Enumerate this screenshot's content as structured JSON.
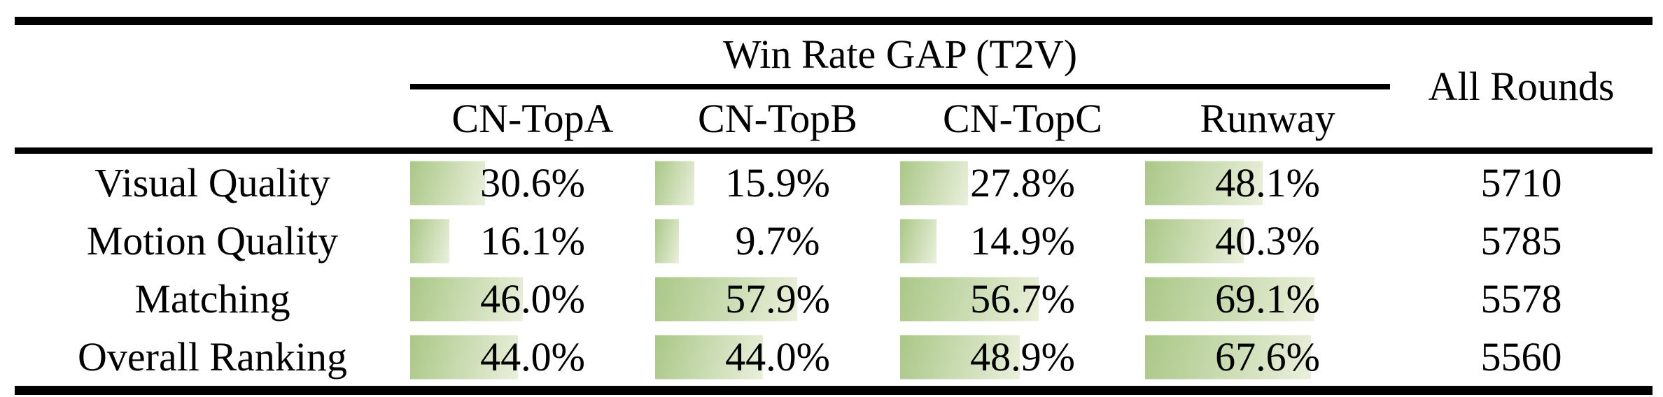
{
  "table": {
    "group_header": "Win Rate GAP (T2V)",
    "all_rounds_header": "All Rounds",
    "columns": [
      "CN-TopA",
      "CN-TopB",
      "CN-TopC",
      "Runway"
    ],
    "rows": [
      {
        "label": "Visual Quality",
        "values": [
          30.6,
          15.9,
          27.8,
          48.1
        ],
        "all_rounds": "5710"
      },
      {
        "label": "Motion Quality",
        "values": [
          16.1,
          9.7,
          14.9,
          40.3
        ],
        "all_rounds": "5785"
      },
      {
        "label": "Matching",
        "values": [
          46.0,
          57.9,
          56.7,
          69.1
        ],
        "all_rounds": "5578"
      },
      {
        "label": "Overall Ranking",
        "values": [
          44.0,
          44.0,
          48.9,
          67.6
        ],
        "all_rounds": "5560"
      }
    ],
    "colors": {
      "bar_gradient_start": "#aac787",
      "bar_gradient_end": "#eaf0dc",
      "rule": "#000000"
    }
  },
  "chart_data": {
    "type": "bar",
    "title": "Win Rate GAP (T2V)",
    "categories": [
      "Visual Quality",
      "Motion Quality",
      "Matching",
      "Overall Ranking"
    ],
    "series": [
      {
        "name": "CN-TopA",
        "values": [
          30.6,
          16.1,
          46.0,
          44.0
        ]
      },
      {
        "name": "CN-TopB",
        "values": [
          15.9,
          9.7,
          57.9,
          44.0
        ]
      },
      {
        "name": "CN-TopC",
        "values": [
          27.8,
          14.9,
          56.7,
          48.9
        ]
      },
      {
        "name": "Runway",
        "values": [
          48.1,
          40.3,
          69.1,
          67.6
        ]
      }
    ],
    "all_rounds": [
      5710,
      5785,
      5578,
      5560
    ],
    "unit": "%",
    "xlim": [
      0,
      100
    ]
  }
}
